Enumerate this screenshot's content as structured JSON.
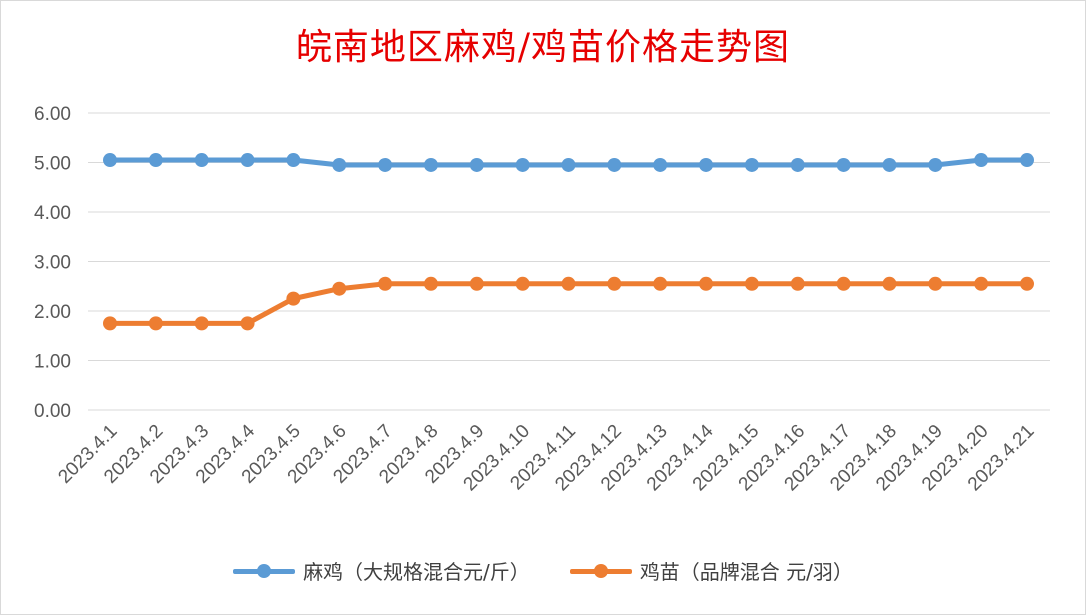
{
  "chart_data": {
    "type": "line",
    "title": "皖南地区麻鸡/鸡苗价格走势图",
    "categories": [
      "2023.4.1",
      "2023.4.2",
      "2023.4.3",
      "2023.4.4",
      "2023.4.5",
      "2023.4.6",
      "2023.4.7",
      "2023.4.8",
      "2023.4.9",
      "2023.4.10",
      "2023.4.11",
      "2023.4.12",
      "2023.4.13",
      "2023.4.14",
      "2023.4.15",
      "2023.4.16",
      "2023.4.17",
      "2023.4.18",
      "2023.4.19",
      "2023.4.20",
      "2023.4.21"
    ],
    "ylim": [
      0,
      6
    ],
    "yticks": [
      "0.00",
      "1.00",
      "2.00",
      "3.00",
      "4.00",
      "5.00",
      "6.00"
    ],
    "grid": true,
    "legend_position": "bottom",
    "series": [
      {
        "name": "麻鸡（大规格混合元/斤）",
        "color": "#5b9bd5",
        "values": [
          5.05,
          5.05,
          5.05,
          5.05,
          5.05,
          4.95,
          4.95,
          4.95,
          4.95,
          4.95,
          4.95,
          4.95,
          4.95,
          4.95,
          4.95,
          4.95,
          4.95,
          4.95,
          4.95,
          5.05,
          5.05
        ]
      },
      {
        "name": "鸡苗（品牌混合 元/羽）",
        "color": "#ed7d31",
        "values": [
          1.75,
          1.75,
          1.75,
          1.75,
          2.25,
          2.45,
          2.55,
          2.55,
          2.55,
          2.55,
          2.55,
          2.55,
          2.55,
          2.55,
          2.55,
          2.55,
          2.55,
          2.55,
          2.55,
          2.55,
          2.55
        ]
      }
    ]
  }
}
